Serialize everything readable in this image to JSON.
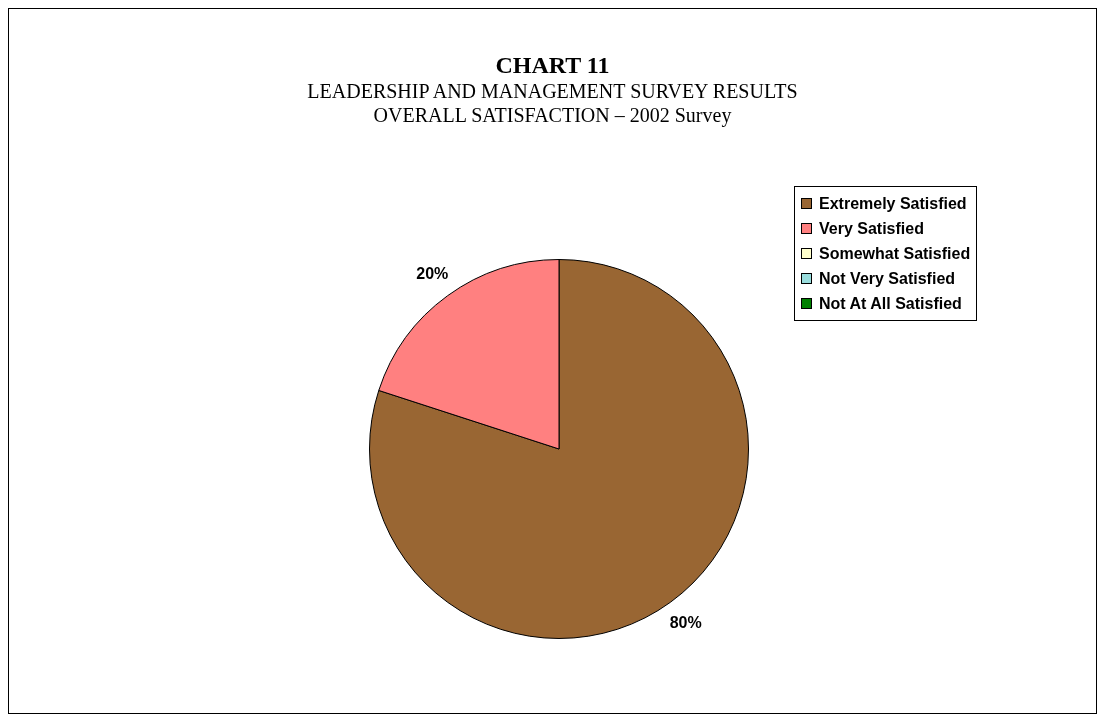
{
  "chart_data": {
    "type": "pie",
    "title": "CHART 11",
    "subtitle": "LEADERSHIP AND MANAGEMENT SURVEY RESULTS\nOVERALL SATISFACTION – 2002 Survey",
    "categories": [
      "Extremely Satisfied",
      "Very Satisfied",
      "Somewhat Satisfied",
      "Not Very Satisfied",
      "Not At All Satisfied"
    ],
    "values": [
      80,
      20,
      0,
      0,
      0
    ],
    "colors": [
      "#996633",
      "#ff8080",
      "#ffffcc",
      "#99dddd",
      "#008000"
    ],
    "value_labels": [
      "80%",
      "20%",
      null,
      null,
      null
    ],
    "legend": "top right"
  }
}
